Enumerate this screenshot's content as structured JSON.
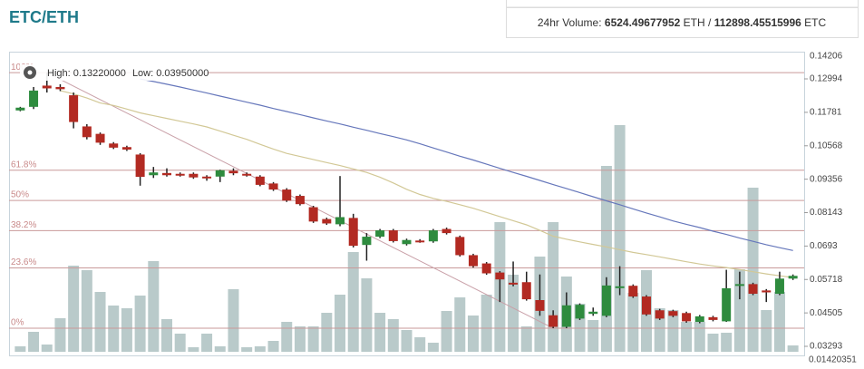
{
  "header": {
    "pair": "ETC/ETH",
    "volume_label": "24hr Volume:",
    "eth_volume": "6524.49677952",
    "eth_unit": "ETH",
    "separator": "/",
    "etc_volume": "112898.45515996",
    "etc_unit": "ETC"
  },
  "chart_data": {
    "type": "candlestick",
    "high_label": "High:",
    "high": {
      "value": 0.1322,
      "label": "0.13220000"
    },
    "low_label": "Low:",
    "low": {
      "value": 0.0395,
      "label": "0.03950000"
    },
    "ylim": [
      0.02964,
      0.13981
    ],
    "yticks": [
      0.14206,
      0.12994,
      0.11781,
      0.10568,
      0.09356,
      0.08143,
      0.0693,
      0.05718,
      0.04505,
      0.03293
    ],
    "bottom_label": "0.01420351",
    "fib_levels": [
      {
        "value": 0.1322,
        "label": "100%"
      },
      {
        "value": 0.0968,
        "label": "61.8%"
      },
      {
        "value": 0.08585,
        "label": "50%"
      },
      {
        "value": 0.07491,
        "label": "38.2%"
      },
      {
        "value": 0.06138,
        "label": "23.6%"
      },
      {
        "value": 0.0395,
        "label": "0%"
      }
    ],
    "up_color": "#2e8b3e",
    "down_color": "#b22a22",
    "volume_color": "#b9caca",
    "fib_color": "#c99a9a",
    "trend_color": "#c9a0a8",
    "open": [
      0.1185,
      0.1198,
      0.1275,
      0.127,
      0.124,
      0.1127,
      0.11,
      0.1065,
      0.1052,
      0.1025,
      0.095,
      0.0958,
      0.0955,
      0.0955,
      0.0945,
      0.0945,
      0.0966,
      0.0955,
      0.0945,
      0.092,
      0.0898,
      0.0875,
      0.0834,
      0.0791,
      0.0772,
      0.0795,
      0.0697,
      0.0727,
      0.075,
      0.07,
      0.0713,
      0.071,
      0.0755,
      0.0726,
      0.066,
      0.063,
      0.0597,
      0.056,
      0.0562,
      0.0497,
      0.0442,
      0.04,
      0.043,
      0.0447,
      0.044,
      0.0543,
      0.0549,
      0.051,
      0.046,
      0.0457,
      0.045,
      0.0418,
      0.0435,
      0.042,
      0.055,
      0.0555,
      0.0532,
      0.052,
      0.0575
    ],
    "close": [
      0.1195,
      0.1257,
      0.1265,
      0.1262,
      0.1143,
      0.1088,
      0.1068,
      0.105,
      0.1043,
      0.0944,
      0.096,
      0.095,
      0.095,
      0.0942,
      0.094,
      0.0968,
      0.0957,
      0.095,
      0.0915,
      0.0898,
      0.0858,
      0.0845,
      0.0782,
      0.0775,
      0.0798,
      0.0694,
      0.0727,
      0.075,
      0.0711,
      0.0715,
      0.071,
      0.075,
      0.074,
      0.066,
      0.062,
      0.0594,
      0.0572,
      0.0556,
      0.05,
      0.0458,
      0.04,
      0.0478,
      0.048,
      0.0455,
      0.055,
      0.0547,
      0.051,
      0.0445,
      0.043,
      0.044,
      0.042,
      0.0438,
      0.0425,
      0.054,
      0.0555,
      0.052,
      0.0525,
      0.0575,
      0.0585
    ],
    "highs": [
      0.1198,
      0.127,
      0.1322,
      0.128,
      0.125,
      0.1135,
      0.1105,
      0.107,
      0.1057,
      0.103,
      0.098,
      0.0975,
      0.096,
      0.096,
      0.095,
      0.097,
      0.0975,
      0.096,
      0.095,
      0.0925,
      0.0903,
      0.088,
      0.0839,
      0.0796,
      0.0947,
      0.081,
      0.074,
      0.0755,
      0.0755,
      0.072,
      0.0718,
      0.0755,
      0.076,
      0.0731,
      0.0665,
      0.0635,
      0.0602,
      0.0637,
      0.06,
      0.059,
      0.046,
      0.0525,
      0.0485,
      0.047,
      0.058,
      0.062,
      0.0554,
      0.0515,
      0.0465,
      0.0462,
      0.0455,
      0.0443,
      0.044,
      0.0607,
      0.06,
      0.056,
      0.0537,
      0.06,
      0.059
    ],
    "lows": [
      0.1182,
      0.119,
      0.125,
      0.1255,
      0.112,
      0.108,
      0.106,
      0.1045,
      0.1038,
      0.0912,
      0.094,
      0.0945,
      0.0945,
      0.0937,
      0.093,
      0.0925,
      0.095,
      0.0945,
      0.091,
      0.0893,
      0.0853,
      0.084,
      0.0777,
      0.077,
      0.0765,
      0.0688,
      0.064,
      0.0722,
      0.0706,
      0.0695,
      0.0705,
      0.0705,
      0.0735,
      0.0655,
      0.0615,
      0.0589,
      0.049,
      0.0547,
      0.0495,
      0.044,
      0.0395,
      0.0395,
      0.0425,
      0.044,
      0.0435,
      0.0515,
      0.0505,
      0.044,
      0.0425,
      0.0435,
      0.0415,
      0.0413,
      0.042,
      0.0418,
      0.05,
      0.0515,
      0.049,
      0.0515,
      0.057
    ],
    "volume": [
      6,
      22,
      8,
      37,
      95,
      90,
      66,
      51,
      48,
      62,
      100,
      36,
      20,
      5,
      20,
      6,
      69,
      5,
      6,
      12,
      33,
      28,
      28,
      43,
      63,
      110,
      81,
      43,
      36,
      24,
      16,
      10,
      45,
      60,
      40,
      63,
      143,
      85,
      28,
      105,
      143,
      83,
      53,
      35,
      205,
      250,
      65,
      90,
      48,
      46,
      33,
      33,
      20,
      21,
      91,
      181,
      46,
      66,
      7
    ],
    "series": [
      {
        "color": "#6677bb",
        "values": [
          null,
          null,
          null,
          null,
          null,
          null,
          null,
          null,
          null,
          0.1299,
          0.129,
          0.128,
          0.127,
          0.1259,
          0.1248,
          0.1237,
          0.1226,
          0.1215,
          0.1204,
          0.1192,
          0.1181,
          0.117,
          0.1158,
          0.1147,
          0.1136,
          0.1124,
          0.1113,
          0.1101,
          0.109,
          0.1078,
          0.1064,
          0.1049,
          0.1034,
          0.1019,
          0.1005,
          0.099,
          0.0975,
          0.096,
          0.0946,
          0.0931,
          0.0916,
          0.0902,
          0.0887,
          0.0872,
          0.0857,
          0.0843,
          0.0828,
          0.0813,
          0.0799,
          0.0784,
          0.0772,
          0.076,
          0.0747,
          0.0735,
          0.0722,
          0.071,
          0.0698,
          0.0687,
          0.0677
        ]
      },
      {
        "color": "#d2c896",
        "values": [
          null,
          null,
          null,
          0.1257,
          0.1245,
          0.123,
          0.1212,
          0.1203,
          0.119,
          0.1176,
          0.1166,
          0.1156,
          0.1146,
          0.1136,
          0.1125,
          0.111,
          0.1095,
          0.108,
          0.1062,
          0.1045,
          0.1029,
          0.1018,
          0.1007,
          0.0996,
          0.0985,
          0.0973,
          0.096,
          0.0943,
          0.0922,
          0.0899,
          0.088,
          0.0866,
          0.0855,
          0.0843,
          0.083,
          0.0815,
          0.08,
          0.0785,
          0.077,
          0.075,
          0.0729,
          0.0718,
          0.0708,
          0.0699,
          0.069,
          0.068,
          0.067,
          0.0662,
          0.0654,
          0.0645,
          0.0636,
          0.0628,
          0.0621,
          0.0615,
          0.0608,
          0.06,
          0.0592,
          0.0585,
          0.0579
        ]
      }
    ]
  }
}
